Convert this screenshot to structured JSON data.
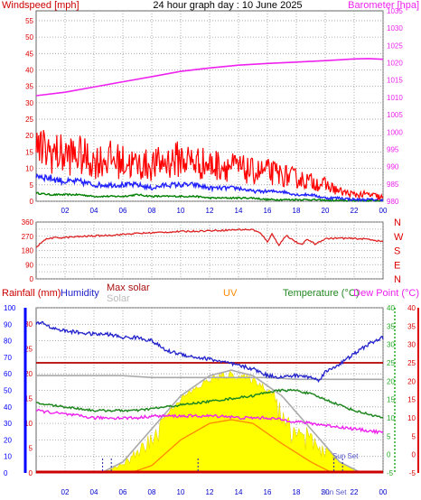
{
  "page_title": "24 hour graph day : 10 June 2025",
  "colors": {
    "grid": "#9a9a9a",
    "wind": "#ff0000",
    "gust": "#ff0000",
    "avg_wind": "#2020ff",
    "wind_low": "#008000",
    "barometer": "#ee22ee",
    "direction": "#dd2222",
    "rain": "#cc0000",
    "humidity": "#2222cc",
    "max_solar": "#aaaaaa",
    "solar": "#ffff00",
    "uv": "#ff8800",
    "temperature": "#228822",
    "dew_point": "#ee22ee",
    "temp_feels": "#aaaaaa",
    "left_axis_blue": "#0000ff",
    "right_axis_red": "#dd0000",
    "right_axis_green": "#22aa22"
  },
  "chart_data": [
    {
      "type": "line",
      "title": "",
      "xlabel": "",
      "ylabel": "Windspeed [mph]",
      "y2label": "Barometer [hpa]",
      "ylim": [
        0,
        58
      ],
      "y2lim": [
        980,
        1035
      ],
      "yticks": [
        0,
        5,
        10,
        15,
        20,
        25,
        30,
        35,
        40,
        45,
        50,
        55
      ],
      "y2ticks": [
        980,
        985,
        990,
        995,
        1000,
        1005,
        1010,
        1015,
        1020,
        1025,
        1030,
        1035
      ],
      "xticks": [
        "02",
        "04",
        "06",
        "08",
        "10",
        "12",
        "14",
        "16",
        "18",
        "20",
        "22",
        "00"
      ],
      "grid": true,
      "series": [
        {
          "name": "Windspeed [mph]",
          "kind": "gust",
          "x": [
            0,
            1,
            2,
            3,
            4,
            5,
            6,
            7,
            8,
            9,
            10,
            11,
            12,
            13,
            14,
            15,
            16,
            17,
            18,
            19,
            20,
            21,
            22,
            23,
            24
          ],
          "values": [
            16,
            15,
            14,
            14,
            12,
            13,
            12,
            11,
            11,
            12,
            13,
            12,
            11,
            11,
            10,
            9,
            9,
            8,
            7,
            6,
            5,
            3,
            2,
            2,
            1
          ]
        },
        {
          "kind": "average",
          "x": [
            0,
            1,
            2,
            3,
            4,
            5,
            6,
            7,
            8,
            9,
            10,
            11,
            12,
            13,
            14,
            15,
            16,
            17,
            18,
            19,
            20,
            21,
            22,
            23,
            24
          ],
          "values": [
            8,
            7,
            6,
            6,
            5,
            5,
            5,
            5,
            4,
            5,
            5,
            5,
            4,
            4,
            4,
            3,
            3,
            3,
            2,
            2,
            1,
            1,
            0.5,
            0.5,
            0.5
          ]
        },
        {
          "kind": "low",
          "x": [
            0,
            1,
            2,
            3,
            4,
            5,
            6,
            7,
            8,
            9,
            10,
            11,
            12,
            13,
            14,
            15,
            16,
            17,
            18,
            19,
            20,
            21,
            22,
            23,
            24
          ],
          "values": [
            2.5,
            2,
            2,
            2,
            1.5,
            1.5,
            1.5,
            2,
            1.5,
            1.5,
            1.5,
            1.5,
            1,
            1,
            1,
            1,
            0.5,
            0.5,
            0.5,
            0.5,
            0.3,
            0.2,
            0.2,
            0.2,
            0.2
          ]
        },
        {
          "name": "Barometer [hpa]",
          "axis": "y2",
          "x": [
            0,
            2,
            4,
            6,
            8,
            10,
            12,
            14,
            16,
            18,
            20,
            22,
            23,
            24
          ],
          "values": [
            1010.5,
            1011.5,
            1013,
            1014.5,
            1016,
            1017.5,
            1018.5,
            1019.3,
            1019.8,
            1020.2,
            1020.6,
            1021.1,
            1021.2,
            1021
          ]
        }
      ]
    },
    {
      "type": "line",
      "title": "",
      "ylabel": "",
      "ylim": [
        0,
        360
      ],
      "yticks": [
        0,
        45,
        90,
        135,
        180,
        225,
        270,
        315,
        360
      ],
      "ytick_labels": [
        "0",
        "",
        "90",
        "",
        "180",
        "",
        "270",
        "",
        "360"
      ],
      "compass": [
        "N",
        "W",
        "S",
        "E",
        "N"
      ],
      "xticks": [],
      "grid": true,
      "series": [
        {
          "kind": "direction",
          "x": [
            0,
            0.5,
            1,
            2,
            3,
            4,
            5,
            6,
            7,
            8,
            9,
            10,
            11,
            12,
            13,
            14,
            15,
            15.5,
            16,
            16.3,
            16.8,
            17.3,
            17.8,
            18.3,
            18.8,
            19.3,
            20,
            21,
            22,
            23,
            24
          ],
          "values": [
            195,
            245,
            258,
            262,
            268,
            272,
            276,
            282,
            288,
            292,
            296,
            300,
            302,
            305,
            308,
            312,
            312,
            290,
            235,
            285,
            215,
            275,
            245,
            215,
            250,
            220,
            255,
            258,
            255,
            252,
            235
          ]
        }
      ]
    },
    {
      "type": "line",
      "title": "",
      "ylabels": [
        "Rainfall (mm)",
        "Humidity",
        "Max solar",
        "Solar",
        "UV",
        "Temperature (°C)",
        "Dew Point (°C)"
      ],
      "axes": {
        "humidity_pct": {
          "ticks": [
            0,
            10,
            20,
            30,
            40,
            50,
            60,
            70,
            80,
            90,
            100
          ]
        },
        "rain_mm": {
          "ticks": [
            0,
            5,
            10,
            15,
            20,
            25,
            30
          ]
        },
        "temp_c_green": {
          "ticks": [
            -5,
            0,
            5,
            10,
            15,
            20,
            25,
            30,
            35,
            40
          ]
        },
        "temp_c_red": {
          "ticks": [
            -5,
            0,
            5,
            10,
            15,
            20,
            25,
            30,
            35,
            40
          ]
        }
      },
      "xticks": [
        "02",
        "04",
        "06",
        "08",
        "10",
        "12",
        "14",
        "16",
        "18",
        "20",
        "22",
        "00"
      ],
      "grid": true,
      "annotations": [
        "Sun Set",
        "Sun Set"
      ],
      "series": [
        {
          "name": "Humidity",
          "unit": "%",
          "x": [
            0,
            0.5,
            1,
            2,
            3,
            4,
            5,
            6,
            7,
            8,
            9,
            10,
            11,
            12,
            13,
            14,
            15,
            16,
            17,
            18,
            19,
            19.5,
            20,
            21,
            22,
            23,
            24
          ],
          "values": [
            90,
            91,
            88,
            86,
            85,
            84,
            84,
            82,
            82,
            80,
            74,
            72,
            70,
            69,
            67,
            65,
            63,
            59,
            58,
            59,
            58,
            56,
            61,
            66,
            72,
            78,
            82
          ]
        },
        {
          "name": "Rainfall (mm)",
          "unit": "mm",
          "x": [
            0,
            24
          ],
          "values": [
            0,
            0
          ]
        },
        {
          "name": "Temperature (°C)",
          "unit": "C",
          "x": [
            0,
            1,
            2,
            3,
            4,
            5,
            6,
            7,
            8,
            9,
            10,
            11,
            12,
            13,
            14,
            15,
            16,
            17,
            18,
            19,
            20,
            21,
            22,
            23,
            24
          ],
          "values": [
            14,
            13.5,
            13,
            12.5,
            12,
            12,
            12,
            12,
            12.5,
            13,
            13.5,
            14,
            14.5,
            15,
            15.5,
            16,
            17,
            17.5,
            17.5,
            16.5,
            15,
            13.5,
            12,
            11,
            10
          ]
        },
        {
          "name": "Dew Point (°C)",
          "unit": "C",
          "x": [
            0,
            1,
            2,
            3,
            4,
            5,
            6,
            7,
            8,
            9,
            10,
            11,
            12,
            13,
            14,
            15,
            16,
            17,
            18,
            19,
            20,
            21,
            22,
            23,
            24
          ],
          "values": [
            12,
            11.5,
            11,
            10.5,
            10,
            10,
            10,
            10,
            10.5,
            10.5,
            10.5,
            10.5,
            10.5,
            10.5,
            10,
            10,
            10,
            9.5,
            9,
            8.5,
            8,
            7.5,
            7,
            6.5,
            6
          ]
        },
        {
          "kind": "feels_like",
          "unit": "C",
          "x": [
            0,
            2,
            4,
            6,
            8,
            10,
            12,
            14,
            16,
            18,
            20,
            22,
            24
          ],
          "values": [
            21.5,
            21.5,
            21.5,
            21.5,
            21,
            21,
            21,
            21,
            21,
            20.5,
            20.5,
            20.5,
            20.5
          ]
        },
        {
          "name": "Max solar",
          "kind": "flat",
          "unit": "C",
          "x": [
            0,
            24
          ],
          "values": [
            25,
            25
          ]
        },
        {
          "name": "Solar",
          "kind": "max_solar_curve",
          "unit": "C",
          "x": [
            4.5,
            6,
            8,
            10,
            12,
            13.5,
            15,
            17,
            19,
            21,
            22.5
          ],
          "values": [
            -5,
            -2,
            7,
            16,
            21.5,
            23,
            21.5,
            16,
            7,
            -2,
            -5
          ]
        },
        {
          "name": "UV",
          "unit": "C",
          "x": [
            6.5,
            8,
            10,
            12,
            13.5,
            15,
            17,
            19,
            20.5
          ],
          "values": [
            -5,
            -3,
            4,
            8.5,
            9.5,
            8.5,
            3,
            -2,
            -5
          ]
        }
      ]
    }
  ]
}
